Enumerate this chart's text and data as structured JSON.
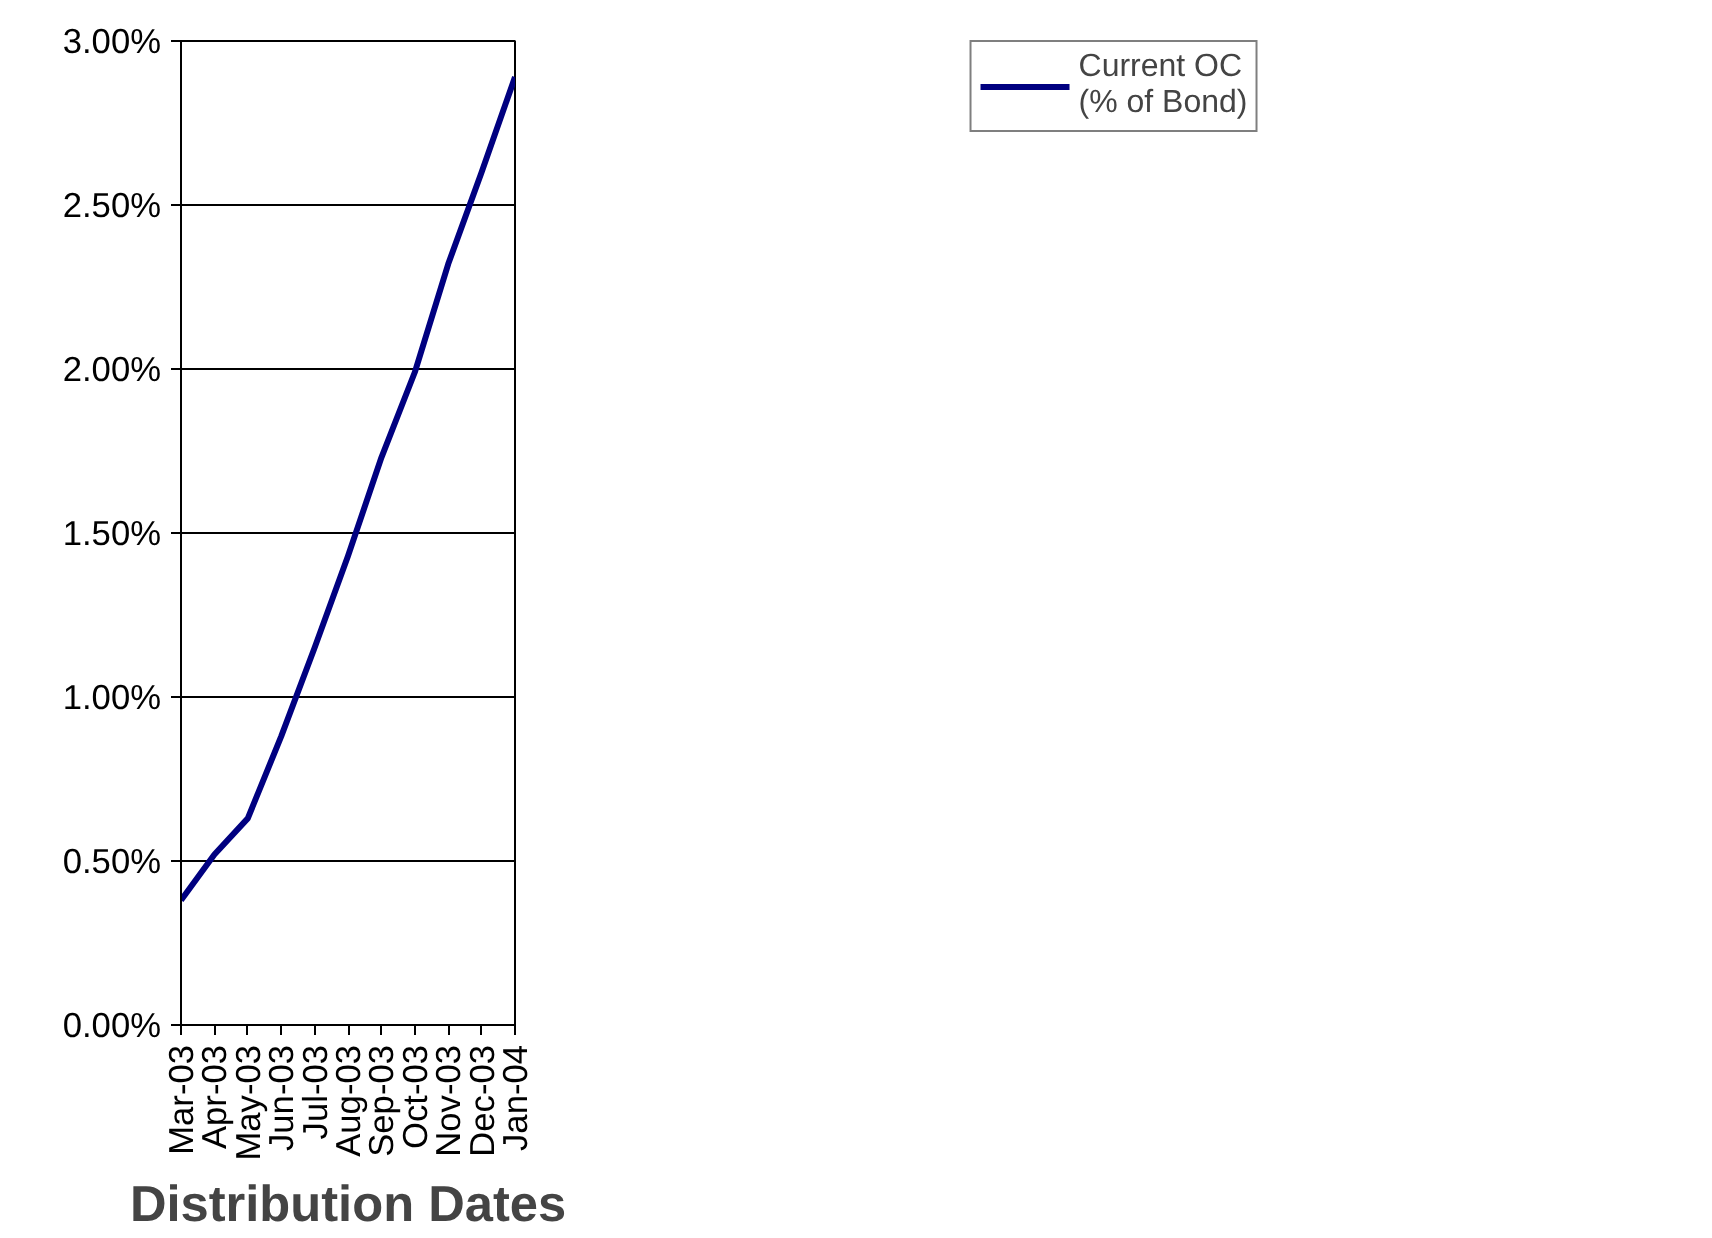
{
  "chart_data": {
    "type": "line",
    "xlabel": "Distribution Dates",
    "categories": [
      "Mar-03",
      "Apr-03",
      "May-03",
      "Jun-03",
      "Jul-03",
      "Aug-03",
      "Sep-03",
      "Oct-03",
      "Nov-03",
      "Dec-03",
      "Jan-04"
    ],
    "series": [
      {
        "name": "Current OC\n(% of Bond)",
        "color": "#000080",
        "values": [
          0.38,
          0.52,
          0.63,
          0.88,
          1.15,
          1.43,
          1.73,
          1.99,
          2.32,
          2.6,
          2.89
        ]
      }
    ],
    "ylim": [
      0,
      3
    ],
    "yticks": [
      {
        "value": 0,
        "label": "0.00%"
      },
      {
        "value": 0.5,
        "label": "0.50%"
      },
      {
        "value": 1,
        "label": "1.00%"
      },
      {
        "value": 1.5,
        "label": "1.50%"
      },
      {
        "value": 2,
        "label": "2.00%"
      },
      {
        "value": 2.5,
        "label": "2.50%"
      },
      {
        "value": 3,
        "label": "3.00%"
      }
    ],
    "grid": "y",
    "legend": "top right",
    "marker": "none",
    "line_style": "solid"
  }
}
